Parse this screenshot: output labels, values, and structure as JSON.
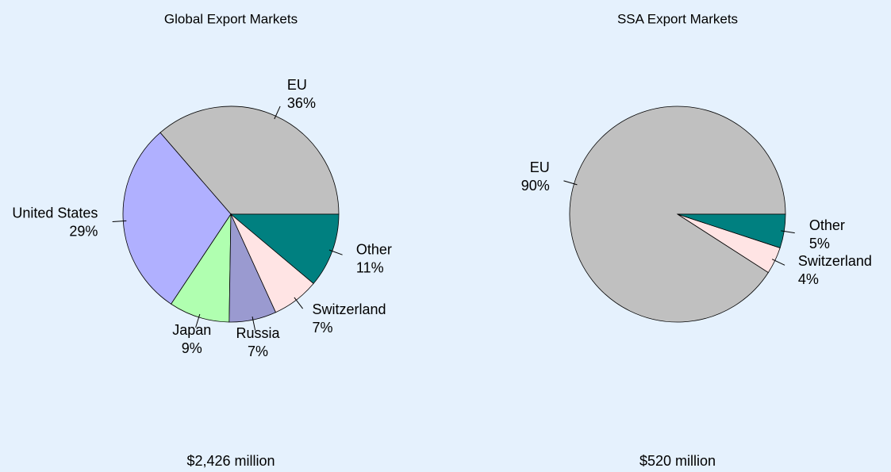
{
  "chart_data": [
    {
      "type": "pie",
      "title": "Global Export Markets",
      "categories": [
        "EU",
        "United States",
        "Japan",
        "Russia",
        "Switzerland",
        "Other"
      ],
      "values": [
        36,
        29,
        9,
        7,
        7,
        11
      ],
      "value_labels": [
        "36%",
        "29%",
        "9%",
        "7%",
        "7%",
        "11%"
      ],
      "colors": [
        "#c0c0c0",
        "#b0b0ff",
        "#b0ffb0",
        "#9a9ad0",
        "#ffe4e4",
        "#008080"
      ],
      "annotation": "$2,426 million"
    },
    {
      "type": "pie",
      "title": "SSA Export Markets",
      "categories": [
        "EU",
        "Switzerland",
        "Other"
      ],
      "values": [
        90,
        4,
        5
      ],
      "value_labels": [
        "90%",
        "4%",
        "5%"
      ],
      "colors": [
        "#c0c0c0",
        "#ffe4e4",
        "#008080"
      ],
      "annotation": "$520 million"
    }
  ]
}
